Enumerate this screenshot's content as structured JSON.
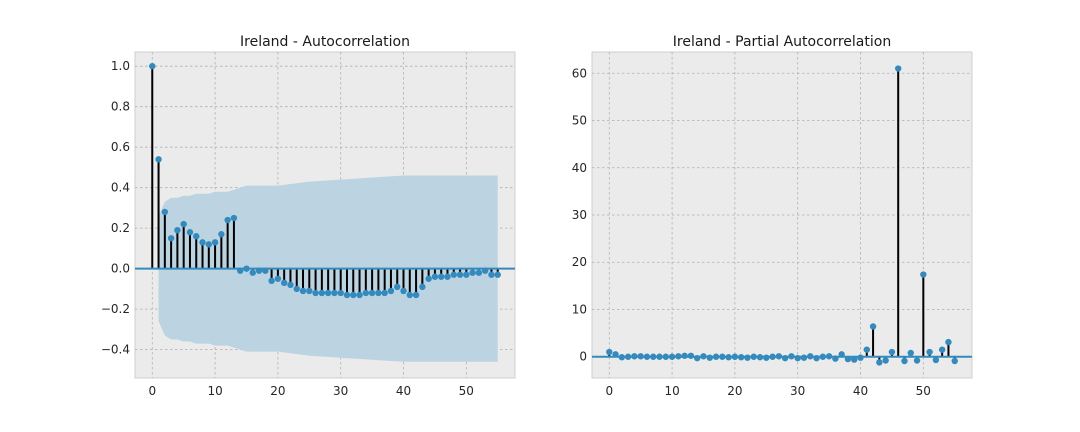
{
  "colors": {
    "marker": "#348abd",
    "stem": "#000000",
    "band": "#bcd3e2",
    "background": "#ebebeb"
  },
  "chart_data": [
    {
      "type": "stem",
      "title": "Ireland - Autocorrelation",
      "xlim": [
        -2.75,
        57.75
      ],
      "ylim": [
        -0.54,
        1.07
      ],
      "xticks": [
        0,
        10,
        20,
        30,
        40,
        50
      ],
      "yticks": [
        -0.4,
        -0.2,
        0.0,
        0.2,
        0.4,
        0.6,
        0.8,
        1.0
      ],
      "ytick_labels": [
        "−0.4",
        "−0.2",
        "0.0",
        "0.2",
        "0.4",
        "0.6",
        "0.8",
        "1.0"
      ],
      "grid": true,
      "x": [
        0,
        1,
        2,
        3,
        4,
        5,
        6,
        7,
        8,
        9,
        10,
        11,
        12,
        13,
        14,
        15,
        16,
        17,
        18,
        19,
        20,
        21,
        22,
        23,
        24,
        25,
        26,
        27,
        28,
        29,
        30,
        31,
        32,
        33,
        34,
        35,
        36,
        37,
        38,
        39,
        40,
        41,
        42,
        43,
        44,
        45,
        46,
        47,
        48,
        49,
        50,
        51,
        52,
        53,
        54,
        55
      ],
      "values": [
        1.0,
        0.54,
        0.28,
        0.15,
        0.19,
        0.22,
        0.18,
        0.16,
        0.13,
        0.12,
        0.13,
        0.17,
        0.24,
        0.25,
        -0.01,
        0.0,
        -0.02,
        -0.01,
        -0.01,
        -0.06,
        -0.05,
        -0.07,
        -0.08,
        -0.1,
        -0.11,
        -0.11,
        -0.12,
        -0.12,
        -0.12,
        -0.12,
        -0.12,
        -0.13,
        -0.13,
        -0.13,
        -0.12,
        -0.12,
        -0.12,
        -0.12,
        -0.11,
        -0.09,
        -0.11,
        -0.13,
        -0.13,
        -0.09,
        -0.05,
        -0.04,
        -0.04,
        -0.04,
        -0.03,
        -0.03,
        -0.03,
        -0.02,
        -0.02,
        -0.01,
        -0.03,
        -0.03
      ],
      "confidence_band": {
        "x": [
          1,
          2,
          3,
          4,
          5,
          6,
          7,
          8,
          9,
          10,
          11,
          12,
          13,
          14,
          15,
          16,
          17,
          18,
          19,
          20,
          25,
          30,
          35,
          40,
          45,
          50,
          55
        ],
        "upper": [
          0.26,
          0.33,
          0.35,
          0.35,
          0.36,
          0.36,
          0.37,
          0.37,
          0.37,
          0.38,
          0.38,
          0.38,
          0.39,
          0.4,
          0.41,
          0.41,
          0.41,
          0.41,
          0.41,
          0.41,
          0.43,
          0.44,
          0.45,
          0.46,
          0.46,
          0.46,
          0.46
        ]
      }
    },
    {
      "type": "stem",
      "title": "Ireland - Partial Autocorrelation",
      "xlim": [
        -2.75,
        57.75
      ],
      "ylim": [
        -4.5,
        64.5
      ],
      "xticks": [
        0,
        10,
        20,
        30,
        40,
        50
      ],
      "yticks": [
        0,
        10,
        20,
        30,
        40,
        50,
        60
      ],
      "ytick_labels": [
        "0",
        "10",
        "20",
        "30",
        "40",
        "50",
        "60"
      ],
      "grid": true,
      "x": [
        0,
        1,
        2,
        3,
        4,
        5,
        6,
        7,
        8,
        9,
        10,
        11,
        12,
        13,
        14,
        15,
        16,
        17,
        18,
        19,
        20,
        21,
        22,
        23,
        24,
        25,
        26,
        27,
        28,
        29,
        30,
        31,
        32,
        33,
        34,
        35,
        36,
        37,
        38,
        39,
        40,
        41,
        42,
        43,
        44,
        45,
        46,
        47,
        48,
        49,
        50,
        51,
        52,
        53,
        54,
        55
      ],
      "values": [
        1.0,
        0.5,
        -0.1,
        0.0,
        0.1,
        0.1,
        0.0,
        0.0,
        0.0,
        0.0,
        0.0,
        0.1,
        0.2,
        0.2,
        -0.3,
        0.1,
        -0.2,
        0.0,
        0.0,
        -0.1,
        0.0,
        -0.1,
        -0.2,
        0.0,
        -0.1,
        -0.2,
        0.0,
        0.1,
        -0.3,
        0.1,
        -0.3,
        -0.2,
        0.1,
        -0.3,
        0.0,
        0.1,
        -0.4,
        0.5,
        -0.5,
        -0.6,
        -0.2,
        1.5,
        6.4,
        -1.2,
        -0.8,
        1.0,
        61.0,
        -0.9,
        0.8,
        -0.8,
        17.4,
        1.0,
        -0.7,
        1.5,
        3.1,
        -0.9
      ]
    }
  ]
}
